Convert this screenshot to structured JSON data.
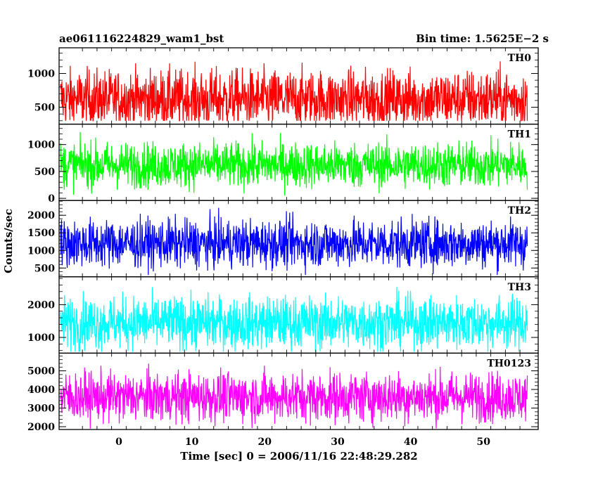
{
  "header": {
    "title": "ae061116224829_wam1_bst",
    "bin_time": "Bin time: 1.5625E−2 s"
  },
  "chart_data": {
    "type": "line",
    "title": "ae061116224829_wam1_bst",
    "xlabel": "Time [sec] 0 = 2006/11/16 22:48:29.282",
    "ylabel": "Counts/sec",
    "xlim": [
      -8.2,
      57.5
    ],
    "x_range": [
      -8,
      56
    ],
    "x_ticks": [
      0,
      10,
      20,
      30,
      40,
      50
    ],
    "x_tick_labels": [
      "0",
      "10",
      "20",
      "30",
      "40",
      "50"
    ],
    "grid": false,
    "series": [
      {
        "name": "TH0",
        "color": "#ff0000",
        "ylim": [
          250,
          1380
        ],
        "ticks": [
          500,
          1000
        ],
        "tick_labels": [
          "500",
          "1000"
        ],
        "mean": 620,
        "min": 300,
        "max": 1350
      },
      {
        "name": "TH1",
        "color": "#00ff00",
        "ylim": [
          -40,
          1380
        ],
        "ticks": [
          0,
          500,
          1000
        ],
        "tick_labels": [
          "0",
          "500",
          "1000"
        ],
        "mean": 620,
        "min": 30,
        "max": 1330
      },
      {
        "name": "TH2",
        "color": "#0000ff",
        "ylim": [
          250,
          2420
        ],
        "ticks": [
          500,
          1000,
          1500,
          2000
        ],
        "tick_labels": [
          "500",
          "1000",
          "1500",
          "2000"
        ],
        "mean": 1200,
        "min": 300,
        "max": 2350
      },
      {
        "name": "TH3",
        "color": "#00ffff",
        "ylim": [
          520,
          2850
        ],
        "ticks": [
          1000,
          2000
        ],
        "tick_labels": [
          "1000",
          "2000"
        ],
        "mean": 1450,
        "min": 560,
        "max": 2800
      },
      {
        "name": "TH0123",
        "color": "#ff00ff",
        "ylim": [
          1850,
          5950
        ],
        "ticks": [
          2000,
          3000,
          4000,
          5000
        ],
        "tick_labels": [
          "2000",
          "3000",
          "4000",
          "5000"
        ],
        "mean": 3600,
        "min": 1900,
        "max": 5850
      }
    ]
  }
}
